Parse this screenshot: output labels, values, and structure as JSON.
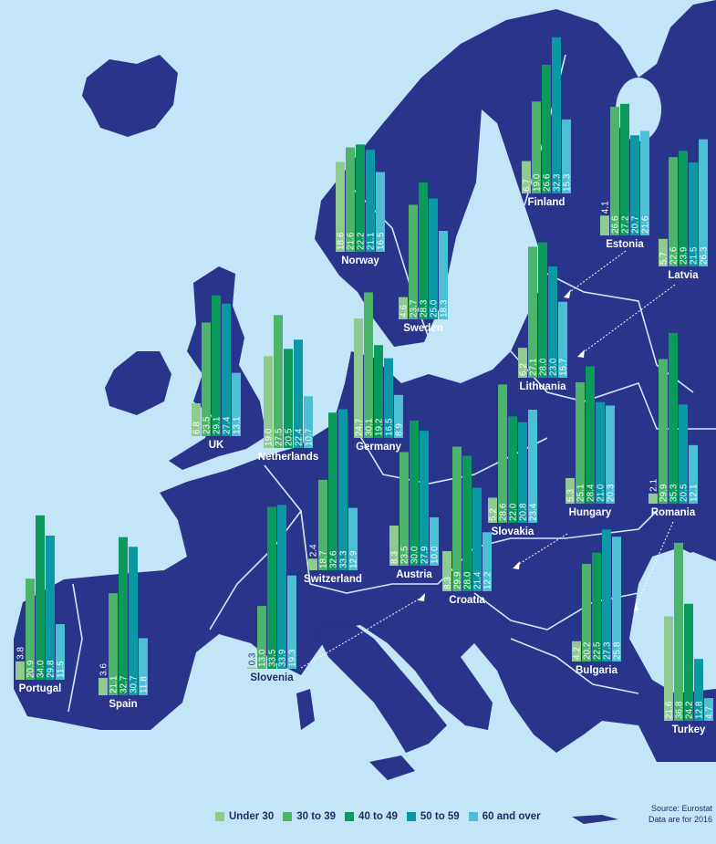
{
  "chart_data": {
    "type": "bar",
    "categories": [
      "Under 30",
      "30 to 39",
      "40 to 49",
      "50 to 59",
      "60 and over"
    ],
    "colors": [
      "#8fca8e",
      "#4cb46b",
      "#0b9a5b",
      "#0a98a4",
      "#4cbfd5"
    ],
    "map_colors": {
      "land": "#29358a",
      "sea": "#c2e5f8",
      "border": "#cfe9fb"
    },
    "unit": "%",
    "countries": [
      {
        "name": "Norway",
        "values": [
          18.6,
          21.6,
          22.2,
          21.1,
          16.5
        ]
      },
      {
        "name": "Finland",
        "values": [
          6.7,
          19.0,
          26.6,
          32.3,
          15.3
        ]
      },
      {
        "name": "Estonia",
        "values": [
          4.1,
          26.6,
          27.2,
          20.7,
          21.6
        ]
      },
      {
        "name": "Latvia",
        "values": [
          5.7,
          22.6,
          23.9,
          21.5,
          26.3
        ]
      },
      {
        "name": "Sweden",
        "values": [
          4.6,
          23.7,
          28.3,
          25.0,
          18.3
        ]
      },
      {
        "name": "Lithuania",
        "values": [
          6.2,
          27.1,
          28.0,
          23.0,
          15.7
        ]
      },
      {
        "name": "UK",
        "values": [
          6.8,
          23.5,
          29.1,
          27.4,
          13.1
        ]
      },
      {
        "name": "Netherlands",
        "values": [
          19.0,
          27.5,
          20.5,
          22.4,
          10.7
        ]
      },
      {
        "name": "Germany",
        "values": [
          24.7,
          30.1,
          19.2,
          16.5,
          8.9
        ]
      },
      {
        "name": "Hungary",
        "values": [
          5.3,
          25.1,
          28.4,
          21.0,
          20.3
        ]
      },
      {
        "name": "Romania",
        "values": [
          2.1,
          29.9,
          35.3,
          20.5,
          12.1
        ]
      },
      {
        "name": "Slovakia",
        "values": [
          5.2,
          28.6,
          22.0,
          20.8,
          23.4
        ]
      },
      {
        "name": "Switzerland",
        "values": [
          2.4,
          18.7,
          32.6,
          33.3,
          12.9
        ]
      },
      {
        "name": "Austria",
        "values": [
          8.3,
          23.5,
          30.0,
          27.9,
          10.0
        ]
      },
      {
        "name": "Croatia",
        "values": [
          8.3,
          29.9,
          28.0,
          21.4,
          12.2
        ]
      },
      {
        "name": "Portugal",
        "values": [
          3.8,
          20.9,
          34.0,
          29.8,
          11.5
        ]
      },
      {
        "name": "Spain",
        "values": [
          3.6,
          21.1,
          32.7,
          30.7,
          11.8
        ]
      },
      {
        "name": "Slovenia",
        "values": [
          0.3,
          13.0,
          33.5,
          33.9,
          19.3
        ]
      },
      {
        "name": "Bulgaria",
        "values": [
          4.2,
          20.2,
          22.5,
          27.3,
          25.8
        ]
      },
      {
        "name": "Turkey",
        "values": [
          21.6,
          36.8,
          24.2,
          12.8,
          4.7
        ]
      }
    ],
    "legend_placement": "bottom",
    "source": "Source: Eurostat",
    "note": "Data are for 2016"
  }
}
